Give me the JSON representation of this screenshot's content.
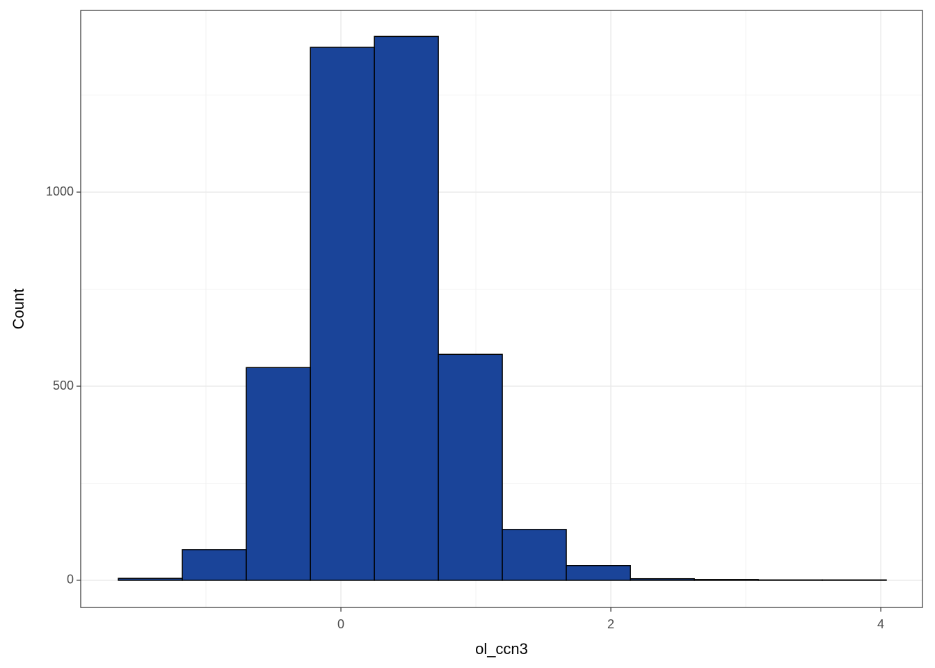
{
  "chart_data": {
    "type": "histogram",
    "x_label": "ol_ccn3",
    "y_label": "Count",
    "bins": [
      -1.649,
      -1.175,
      -0.701,
      -0.226,
      0.248,
      0.722,
      1.196,
      1.67,
      2.145,
      2.619,
      3.093,
      3.567,
      4.041
    ],
    "values": [
      5,
      79,
      548,
      1373,
      1401,
      582,
      131,
      38,
      4,
      2,
      1,
      1
    ],
    "color": "#1a4499",
    "edge_color": "#000000",
    "xlim": [
      -1.928,
      4.309
    ],
    "ylim": [
      -70,
      1468
    ],
    "xticks": [
      0,
      2,
      4
    ],
    "yticks": [
      0,
      500,
      1000
    ],
    "x_minor_ticks": [
      -1,
      1,
      3
    ],
    "y_minor_ticks": [
      250,
      750,
      1250
    ],
    "grid": true
  }
}
